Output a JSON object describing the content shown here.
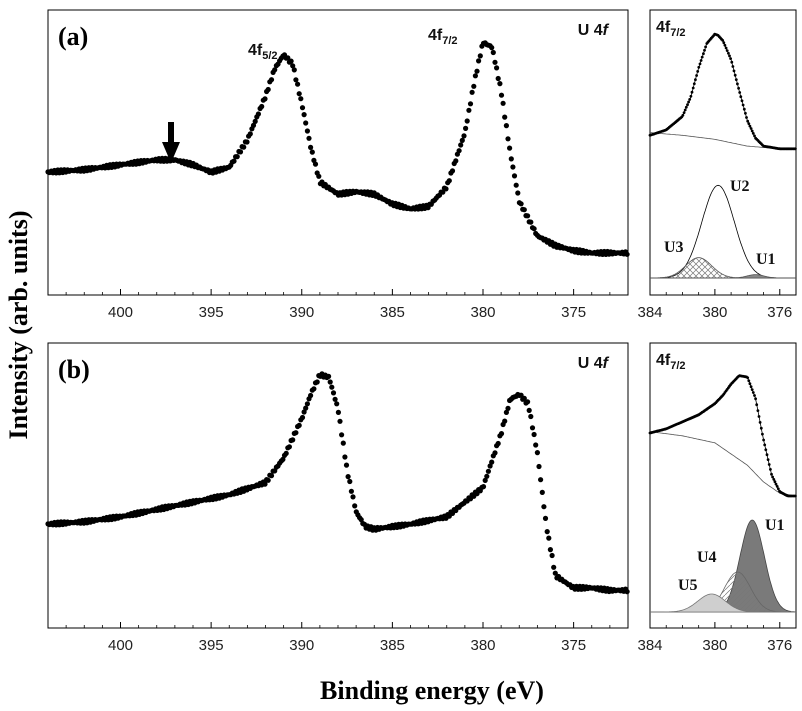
{
  "figure": {
    "y_axis_label": "Intensity (arb. units)",
    "x_axis_label": "Binding energy (eV)"
  },
  "chart_data": [
    {
      "id": "a-main",
      "type": "scatter",
      "panel_label": "(a)",
      "corner_label": "U 4f",
      "peak_labels": [
        "4f5/2",
        "4f7/2"
      ],
      "annotation": "arrow at ~397 eV",
      "xlabel": "Binding energy (eV)",
      "ylabel": "Intensity (arb. units)",
      "xlim": [
        404,
        372
      ],
      "ylim": [
        0,
        1
      ],
      "xticks": [
        400,
        395,
        390,
        385,
        380,
        375
      ],
      "x": [
        404,
        402,
        400,
        398,
        397,
        396,
        395,
        394,
        393,
        392,
        391.5,
        391,
        390.5,
        390,
        389.5,
        389,
        388,
        387,
        386,
        385,
        384,
        383,
        382,
        381,
        380.5,
        380,
        379.5,
        379,
        378.5,
        378,
        377,
        376,
        375,
        374,
        373,
        372
      ],
      "y": [
        0.42,
        0.43,
        0.45,
        0.47,
        0.47,
        0.45,
        0.42,
        0.44,
        0.55,
        0.73,
        0.84,
        0.9,
        0.86,
        0.7,
        0.52,
        0.38,
        0.33,
        0.34,
        0.33,
        0.29,
        0.27,
        0.28,
        0.36,
        0.58,
        0.78,
        0.95,
        0.93,
        0.75,
        0.5,
        0.3,
        0.16,
        0.12,
        0.1,
        0.09,
        0.09,
        0.09
      ]
    },
    {
      "id": "a-inset",
      "type": "scatter",
      "corner_label": "4f7/2",
      "components": [
        "U1",
        "U2",
        "U3"
      ],
      "xlim": [
        384,
        375
      ],
      "xticks": [
        384,
        380,
        376
      ],
      "x": [
        384,
        383,
        382,
        381.5,
        381,
        380.5,
        380,
        379.8,
        379.5,
        379,
        378.5,
        378,
        377.5,
        377,
        376,
        375
      ],
      "y": [
        0.22,
        0.26,
        0.36,
        0.5,
        0.72,
        0.9,
        0.97,
        0.96,
        0.92,
        0.78,
        0.55,
        0.33,
        0.2,
        0.14,
        0.12,
        0.12
      ],
      "background_line": {
        "x": [
          384,
          382,
          380,
          378,
          376,
          375
        ],
        "y": [
          0.24,
          0.22,
          0.19,
          0.14,
          0.12,
          0.12
        ]
      },
      "fit_components": [
        {
          "name": "U2",
          "center": 379.8,
          "height": 0.82,
          "width": 1.0
        },
        {
          "name": "U3",
          "center": 381.0,
          "height": 0.18,
          "width": 0.8
        },
        {
          "name": "U1",
          "center": 377.5,
          "height": 0.03,
          "width": 0.5
        }
      ]
    },
    {
      "id": "b-main",
      "type": "scatter",
      "panel_label": "(b)",
      "corner_label": "U 4f",
      "xlabel": "Binding energy (eV)",
      "ylabel": "Intensity (arb. units)",
      "xlim": [
        404,
        372
      ],
      "ylim": [
        0,
        1
      ],
      "xticks": [
        400,
        395,
        390,
        385,
        380,
        375
      ],
      "x": [
        404,
        402,
        400,
        398,
        396,
        394,
        392,
        391,
        390,
        389.5,
        389,
        388.5,
        388,
        387.5,
        387,
        386.5,
        386,
        384,
        382,
        380,
        379,
        378.5,
        378,
        377.5,
        377,
        376.5,
        376,
        375,
        374,
        373,
        372
      ],
      "y": [
        0.33,
        0.34,
        0.36,
        0.39,
        0.42,
        0.45,
        0.5,
        0.6,
        0.76,
        0.86,
        0.94,
        0.93,
        0.8,
        0.55,
        0.38,
        0.32,
        0.31,
        0.33,
        0.36,
        0.48,
        0.7,
        0.84,
        0.86,
        0.82,
        0.62,
        0.32,
        0.12,
        0.07,
        0.07,
        0.06,
        0.06
      ]
    },
    {
      "id": "b-inset",
      "type": "scatter",
      "corner_label": "4f7/2",
      "components": [
        "U1",
        "U4",
        "U5"
      ],
      "xlim": [
        384,
        375
      ],
      "xticks": [
        384,
        380,
        376
      ],
      "x": [
        384,
        383,
        382,
        381,
        380,
        379.5,
        379,
        378.5,
        378,
        377.5,
        377,
        376.5,
        376,
        375.5,
        375
      ],
      "y": [
        0.55,
        0.58,
        0.63,
        0.68,
        0.76,
        0.82,
        0.9,
        0.96,
        0.95,
        0.8,
        0.5,
        0.25,
        0.13,
        0.1,
        0.1
      ],
      "background_line": {
        "x": [
          384,
          382,
          380,
          378,
          377,
          376,
          375
        ],
        "y": [
          0.56,
          0.53,
          0.48,
          0.32,
          0.2,
          0.12,
          0.1
        ]
      },
      "fit_components": [
        {
          "name": "U1",
          "center": 377.7,
          "height": 0.92,
          "width": 0.75
        },
        {
          "name": "U4",
          "center": 378.6,
          "height": 0.4,
          "width": 0.8
        },
        {
          "name": "U5",
          "center": 380.2,
          "height": 0.18,
          "width": 0.85
        }
      ]
    }
  ]
}
